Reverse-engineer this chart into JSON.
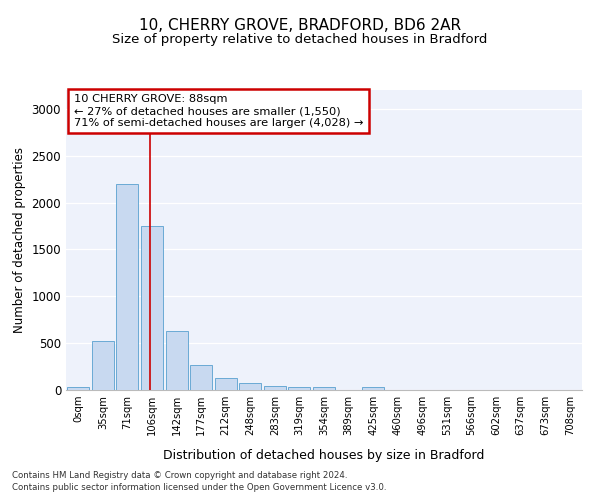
{
  "title": "10, CHERRY GROVE, BRADFORD, BD6 2AR",
  "subtitle": "Size of property relative to detached houses in Bradford",
  "xlabel": "Distribution of detached houses by size in Bradford",
  "ylabel": "Number of detached properties",
  "footnote1": "Contains HM Land Registry data © Crown copyright and database right 2024.",
  "footnote2": "Contains public sector information licensed under the Open Government Licence v3.0.",
  "annotation_title": "10 CHERRY GROVE: 88sqm",
  "annotation_line1": "← 27% of detached houses are smaller (1,550)",
  "annotation_line2": "71% of semi-detached houses are larger (4,028) →",
  "bar_color": "#c8d9f0",
  "bar_edge_color": "#6aaad4",
  "redline_color": "#cc0000",
  "annotation_box_edgecolor": "#cc0000",
  "background_color": "#eef2fb",
  "grid_color": "#ffffff",
  "categories": [
    "0sqm",
    "35sqm",
    "71sqm",
    "106sqm",
    "142sqm",
    "177sqm",
    "212sqm",
    "248sqm",
    "283sqm",
    "319sqm",
    "354sqm",
    "389sqm",
    "425sqm",
    "460sqm",
    "496sqm",
    "531sqm",
    "566sqm",
    "602sqm",
    "637sqm",
    "673sqm",
    "708sqm"
  ],
  "values": [
    28,
    520,
    2200,
    1750,
    630,
    268,
    130,
    75,
    38,
    33,
    28,
    5,
    30,
    5,
    5,
    0,
    0,
    0,
    0,
    0,
    0
  ],
  "ylim": [
    0,
    3200
  ],
  "yticks": [
    0,
    500,
    1000,
    1500,
    2000,
    2500,
    3000
  ],
  "redline_x": 2.92,
  "title_fontsize": 11,
  "subtitle_fontsize": 9.5
}
